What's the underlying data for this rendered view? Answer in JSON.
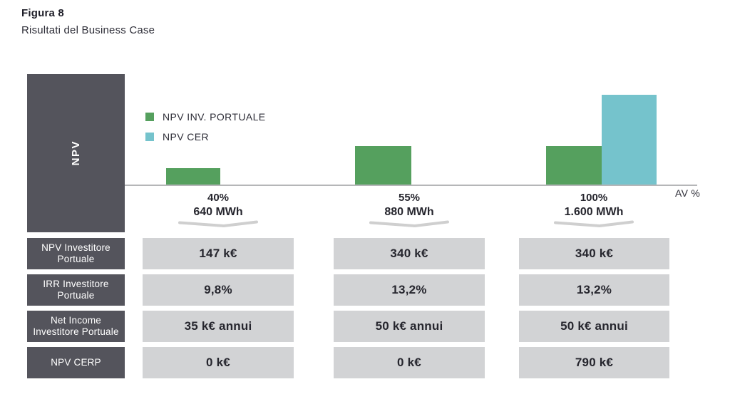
{
  "figure": {
    "label": "Figura 8",
    "title": "Risultati del Business Case"
  },
  "chart_data": {
    "type": "bar",
    "title": "Risultati del Business Case",
    "y_axis_label": "NPV",
    "x_axis_label": "AV %",
    "unit": "k€",
    "legend_position": "top-left",
    "grid": false,
    "categories": [
      {
        "availability_pct": "40%",
        "energy": "640 MWh"
      },
      {
        "availability_pct": "55%",
        "energy": "880 MWh"
      },
      {
        "availability_pct": "100%",
        "energy": "1.600 MWh"
      }
    ],
    "series": [
      {
        "name": "NPV INV. PORTUALE",
        "color": "#55a05e",
        "values": [
          147,
          340,
          340
        ]
      },
      {
        "name": "NPV CER",
        "color": "#75c3cc",
        "values": [
          0,
          0,
          790
        ]
      }
    ]
  },
  "table": {
    "rows": [
      {
        "label": "NPV Investitore\nPortuale",
        "values": [
          "147 k€",
          "340 k€",
          "340 k€"
        ]
      },
      {
        "label": "IRR Investitore\nPortuale",
        "values": [
          "9,8%",
          "13,2%",
          "13,2%"
        ]
      },
      {
        "label": "Net Income\nInvestitore Portuale",
        "values": [
          "35 k€ annui",
          "50 k€ annui",
          "50 k€ annui"
        ]
      },
      {
        "label": "NPV CERP",
        "values": [
          "0 k€",
          "0 k€",
          "790 k€"
        ]
      }
    ]
  },
  "colors": {
    "dark_box": "#54545c",
    "value_box": "#d2d3d5",
    "green": "#55a05e",
    "teal": "#75c3cc",
    "axis": "#b5b6b8",
    "text": "#2e2e38"
  }
}
